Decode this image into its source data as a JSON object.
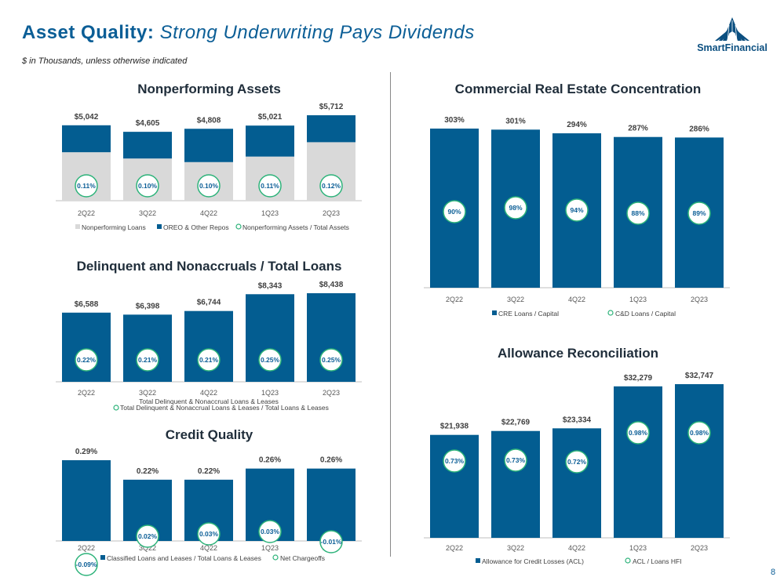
{
  "header": {
    "title_main": "Asset Quality:",
    "title_sub": "Strong Underwriting Pays Dividends",
    "subtitle": "$ in Thousands, unless otherwise indicated",
    "logo_text": "SmartFinancial"
  },
  "page_number": "8",
  "colors": {
    "navy_bar": "#035d91",
    "gray_bar": "#d9d9d9",
    "circle_stroke": "#2db37a",
    "circle_text": "#0b5e96",
    "title_blue": "#0b5e96"
  },
  "chart_data": [
    {
      "id": "npa",
      "type": "bar",
      "stacked": true,
      "title": "Nonperforming Assets",
      "categories": [
        "2Q22",
        "3Q22",
        "4Q22",
        "1Q23",
        "2Q23"
      ],
      "series": [
        {
          "name": "Nonperforming Loans",
          "values": [
            3240,
            2820,
            2580,
            2950,
            3910
          ]
        },
        {
          "name": "OREO & Other Repos",
          "values": [
            1802,
            1785,
            2228,
            2071,
            1802
          ]
        }
      ],
      "totals": [
        "$5,042",
        "$4,605",
        "$4,808",
        "$5,021",
        "$5,712"
      ],
      "total_values": [
        5042,
        4605,
        4808,
        5021,
        5712
      ],
      "ratio_labels": [
        "0.11%",
        "0.10%",
        "0.10%",
        "0.11%",
        "0.12%"
      ],
      "ratio_name": "Nonperforming Assets / Total Assets",
      "legend": [
        "Nonperforming Loans",
        "OREO & Other Repos",
        "Nonperforming Assets / Total Assets"
      ],
      "ylim": [
        0,
        5712
      ]
    },
    {
      "id": "delinquent",
      "type": "bar",
      "title": "Delinquent and Nonaccruals / Total Loans",
      "categories": [
        "2Q22",
        "3Q22",
        "4Q22",
        "1Q23",
        "2Q23"
      ],
      "values": [
        6588,
        6398,
        6744,
        8343,
        8438
      ],
      "value_labels": [
        "$6,588",
        "$6,398",
        "$6,744",
        "$8,343",
        "$8,438"
      ],
      "ratio_labels": [
        "0.22%",
        "0.21%",
        "0.21%",
        "0.25%",
        "0.25%"
      ],
      "legend": [
        "Total Delinquent & Nonaccrual Loans & Leases",
        "Total Delinquent & Nonaccrual Loans & Leases / Total Loans & Leases"
      ],
      "ylim": [
        0,
        8438
      ]
    },
    {
      "id": "credit",
      "type": "bar",
      "title": "Credit Quality",
      "categories": [
        "2Q22",
        "3Q22",
        "4Q22",
        "1Q23",
        "2Q23"
      ],
      "values": [
        0.29,
        0.22,
        0.22,
        0.26,
        0.26
      ],
      "value_labels": [
        "0.29%",
        "0.22%",
        "0.22%",
        "0.26%",
        "0.26%"
      ],
      "ratio_values": [
        -0.09,
        0.02,
        0.03,
        0.03,
        -0.01
      ],
      "ratio_labels": [
        "-0.09%",
        "0.02%",
        "0.03%",
        "0.03%",
        "-0.01%"
      ],
      "legend": [
        "Classified Loans and Leases / Total Loans & Leases",
        "Net Chargeoffs"
      ],
      "ylim": [
        0,
        0.29
      ]
    },
    {
      "id": "cre",
      "type": "bar",
      "title": "Commercial Real Estate Concentration",
      "categories": [
        "2Q22",
        "3Q22",
        "4Q22",
        "1Q23",
        "2Q23"
      ],
      "values": [
        303,
        301,
        294,
        287,
        286
      ],
      "value_labels": [
        "303%",
        "301%",
        "294%",
        "287%",
        "286%"
      ],
      "ratio_values": [
        90,
        98,
        94,
        88,
        89
      ],
      "ratio_labels": [
        "90%",
        "98%",
        "94%",
        "88%",
        "89%"
      ],
      "legend": [
        "CRE Loans / Capital",
        "C&D Loans / Capital"
      ],
      "ylim": [
        0,
        303
      ]
    },
    {
      "id": "acl",
      "type": "bar",
      "title": "Allowance Reconciliation",
      "categories": [
        "2Q22",
        "3Q22",
        "4Q22",
        "1Q23",
        "2Q23"
      ],
      "values": [
        21938,
        22769,
        23334,
        32279,
        32747
      ],
      "value_labels": [
        "$21,938",
        "$22,769",
        "$23,334",
        "$32,279",
        "$32,747"
      ],
      "ratio_values": [
        0.73,
        0.73,
        0.72,
        0.98,
        0.98
      ],
      "ratio_labels": [
        "0.73%",
        "0.73%",
        "0.72%",
        "0.98%",
        "0.98%"
      ],
      "legend": [
        "Allowance for Credit Losses (ACL)",
        "ACL / Loans HFI"
      ],
      "ylim": [
        0,
        32747
      ]
    }
  ]
}
